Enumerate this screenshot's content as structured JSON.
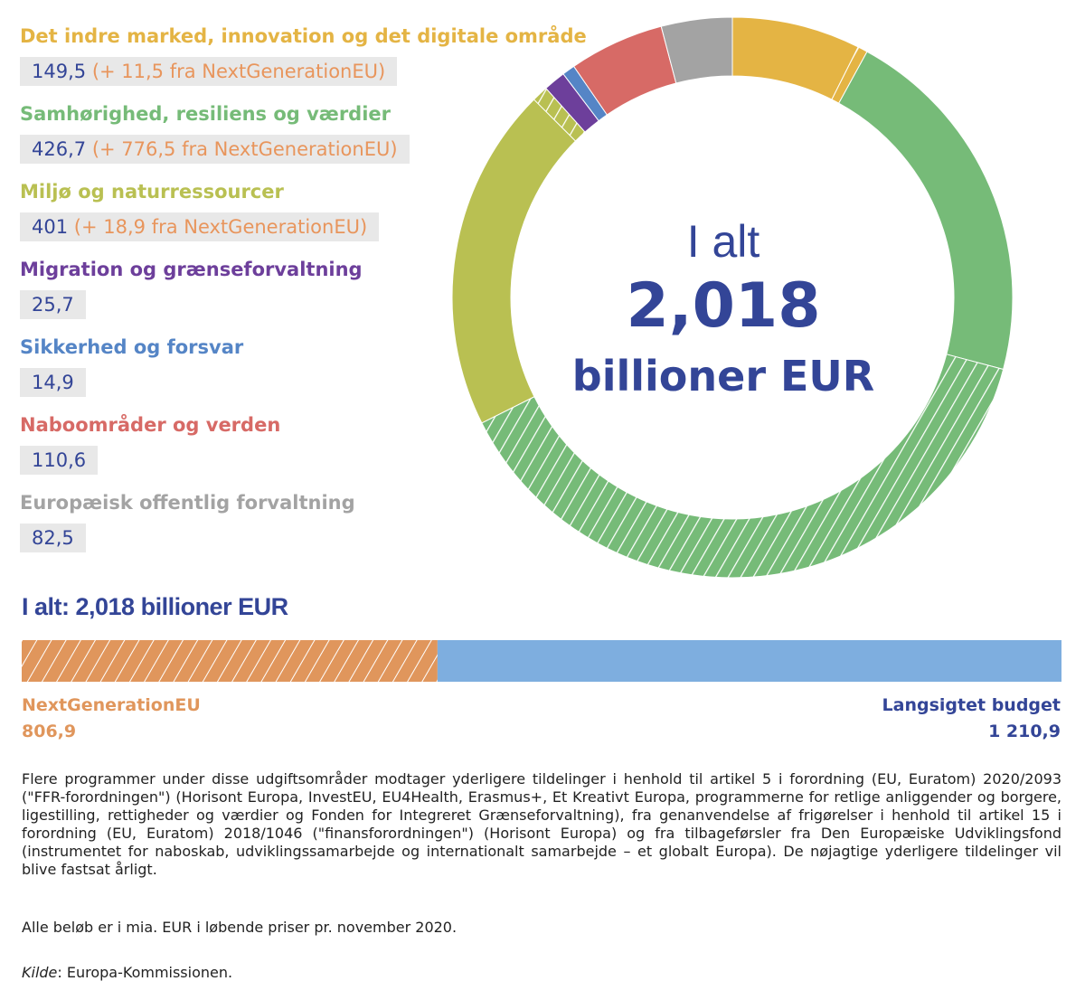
{
  "legend": {
    "items": [
      {
        "title": "Det indre marked, innovation og det digitale område",
        "base": "149,5",
        "ngeu": "(+ 11,5 fra NextGenerationEU)",
        "color": "#e4b444"
      },
      {
        "title": "Samhørighed, resiliens og værdier",
        "base": "426,7",
        "ngeu": "(+ 776,5 fra NextGenerationEU)",
        "color": "#76bb78"
      },
      {
        "title": "Miljø og naturressourcer",
        "base": "401",
        "ngeu": "(+ 18,9 fra NextGenerationEU)",
        "color": "#b9c052"
      },
      {
        "title": "Migration og grænseforvaltning",
        "base": "25,7",
        "ngeu": "",
        "color": "#6d3f9b"
      },
      {
        "title": "Sikkerhed og forsvar",
        "base": "14,9",
        "ngeu": "",
        "color": "#5585c6"
      },
      {
        "title": "Naboområder og verden",
        "base": "110,6",
        "ngeu": "",
        "color": "#d76a66"
      },
      {
        "title": "Europæisk offentlig forvaltning",
        "base": "82,5",
        "ngeu": "",
        "color": "#a3a3a3"
      }
    ]
  },
  "center": {
    "line1": "I alt",
    "line2": "2,018",
    "line3": "billioner EUR"
  },
  "total_label": "I alt: 2,018 billioner EUR",
  "bar": {
    "left_label": "NextGenerationEU",
    "left_value": "806,9",
    "right_label": "Langsigtet budget",
    "right_value": "1 210,9",
    "left_color": "#e0965c",
    "right_color": "#7eaedf"
  },
  "notes": {
    "paragraph": "Flere programmer under disse udgiftsområder modtager yderligere tildelinger i henhold til artikel 5 i forordning (EU, Euratom) 2020/2093 (\"FFR-forordningen\") (Horisont Europa, InvestEU, EU4Health, Erasmus+, Et Kreativt Europa, programmerne for retlige anliggender og borgere, ligestilling, rettigheder og værdier og Fonden for Integreret Grænseforvaltning), fra genanvendelse af frigørelser i henhold til artikel 15 i forordning (EU, Euratom) 2018/1046 (\"finansforordningen\") (Horisont Europa) og fra tilbageførsler fra Den Europæiske Udviklingsfond (instrumentet for naboskab, udviklingssamarbejde og internationalt samarbejde – et globalt Europa). De nøjagtige yderligere tildelinger vil blive fastsat årligt.",
    "prices": "Alle beløb er i mia. EUR i løbende priser pr. november 2020.",
    "source_label": "Kilde",
    "source_text": ": Europa-Kommissionen."
  },
  "chart_data": [
    {
      "type": "pie",
      "title": "",
      "unit": "mia. EUR",
      "categories": [
        "Det indre marked, innovation og det digitale område",
        "Samhørighed, resiliens og værdier",
        "Miljø og naturressourcer",
        "Migration og grænseforvaltning",
        "Sikkerhed og forsvar",
        "Naboområder og verden",
        "Europæisk offentlig forvaltning"
      ],
      "series": [
        {
          "name": "",
          "values": [
            149.5,
            426.7,
            401,
            25.7,
            14.9,
            110.6,
            82.5
          ]
        },
        {
          "name": "NextGenerationEU",
          "values": [
            11.5,
            776.5,
            18.9,
            0,
            0,
            0,
            0
          ]
        }
      ],
      "colors": [
        "#e4b444",
        "#76bb78",
        "#b9c052",
        "#6d3f9b",
        "#5585c6",
        "#d76a66",
        "#a3a3a3"
      ],
      "total": "2,018 billioner EUR"
    },
    {
      "type": "bar",
      "orientation": "horizontal-stacked",
      "categories": [
        "NextGenerationEU",
        "Langsigtet budget"
      ],
      "values": [
        806.9,
        1210.9
      ],
      "colors": [
        "#e0965c",
        "#7eaedf"
      ]
    }
  ]
}
